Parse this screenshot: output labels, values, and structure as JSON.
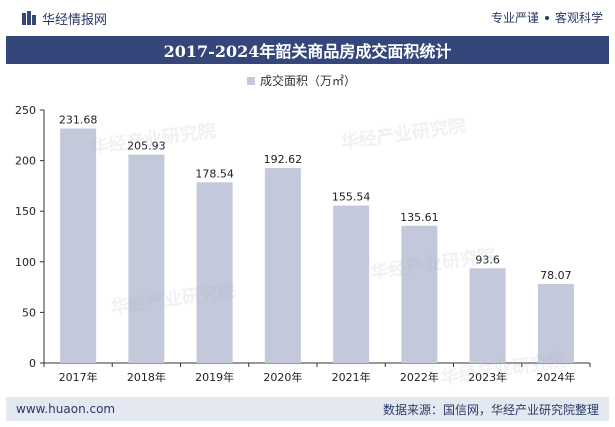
{
  "header": {
    "brand_name": "华经情报网",
    "tagline_left": "专业严谨",
    "tagline_right": "客观科学"
  },
  "footer": {
    "website": "www.huaon.com",
    "source": "数据来源：国信网，华经产业研究院整理"
  },
  "watermark_text": "华经产业研究院",
  "colors": {
    "bar": "#c3c8da",
    "title_bg": "#34467a",
    "text": "#2a3a66"
  },
  "chart_data": {
    "type": "bar",
    "title": "2017-2024年韶关商品房成交面积统计",
    "legend": [
      "成交面积（万㎡）"
    ],
    "legend_position": "top",
    "categories": [
      "2017年",
      "2018年",
      "2019年",
      "2020年",
      "2021年",
      "2022年",
      "2023年",
      "2024年"
    ],
    "series": [
      {
        "name": "成交面积（万㎡）",
        "values": [
          231.68,
          205.93,
          178.54,
          192.62,
          155.54,
          135.61,
          93.6,
          78.07
        ]
      }
    ],
    "data_labels": [
      "231.68",
      "205.93",
      "178.54",
      "192.62",
      "155.54",
      "135.61",
      "93.6",
      "78.07"
    ],
    "yticks": [
      "0",
      "50",
      "100",
      "150",
      "200",
      "250"
    ],
    "ylim": [
      0,
      250
    ],
    "xlabel": "",
    "ylabel": "",
    "grid": false
  }
}
